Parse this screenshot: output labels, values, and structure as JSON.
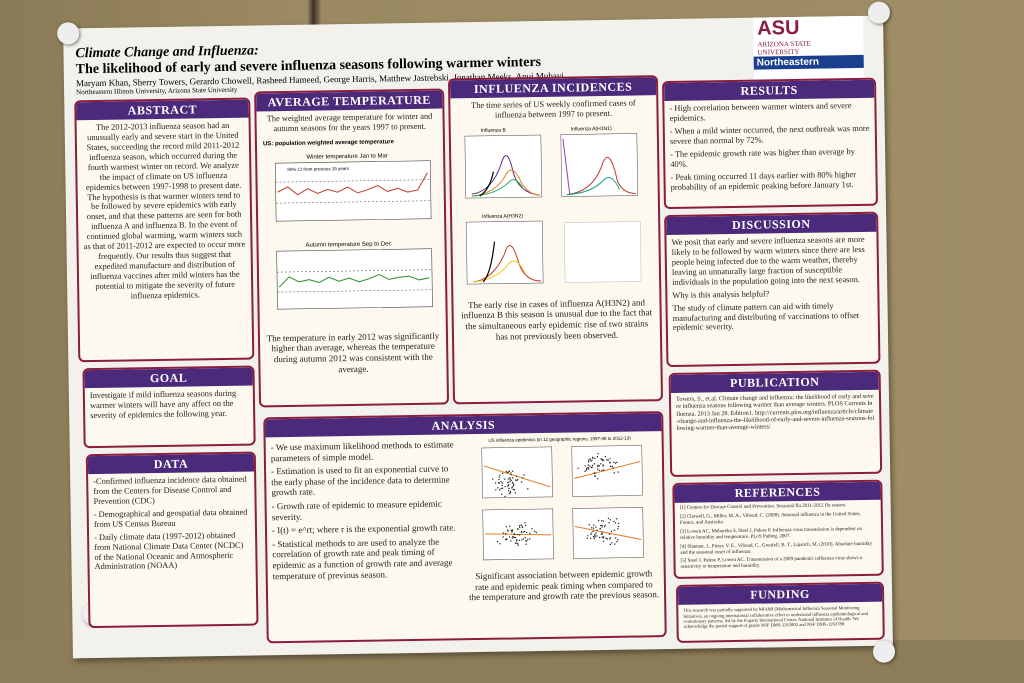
{
  "header": {
    "title": "Climate Change and Influenza:",
    "subtitle": "The likelihood of early and severe influenza seasons following warmer winters",
    "authors": "Maryam Khan, Sherry Towers, Gerardo Chowell, Rasheed Hameed, George Harris, Matthew Jastrebski, Jonathan Meeks, Anuj Mubayi",
    "affiliations": "Northeastern Illinois University, Arizona State University",
    "logo_asu": "ASU",
    "logo_asu_name": "ARIZONA STATE UNIVERSITY",
    "logo_neiu": "Northeastern"
  },
  "abstract": {
    "title": "ABSTRACT",
    "text": "The 2012-2013 influenza season had an unusually early and severe start in the United States, succeeding the record mild 2011-2012 influenza season, which occurred during the fourth warmest winter on record. We analyze the impact of climate on US influenza epidemics between 1997-1998 to present date. The hypothesis is that warmer winters tend to be followed by severe epidemics with early onset, and that these patterns are seen for both influenza A and influenza B. In the event of continued global warming, warm winters such as that of 2011-2012 are expected to occur more frequently. Our results thus suggest that expedited manufacture and distribution of influenza vaccines after mild winters has the potential to mitigate the severity of future influenza epidemics."
  },
  "goal": {
    "title": "GOAL",
    "text": "Investigate if mild influenza seasons during warmer winters will have any affect on the severity of epidemics the following year."
  },
  "data": {
    "title": "DATA",
    "items": [
      "-Confirmed influenza incidence data obtained from the Centers for Disease Control and Prevention (CDC)",
      "- Demographical and geospatial data obtained from US Census Bureau",
      "- Daily climate data (1997-2012) obtained from National Climate Data Center (NCDC) of the National Oceanic and Atmospheric Administration (NOAA)"
    ]
  },
  "temperature": {
    "title": "AVERAGE TEMPERATURE",
    "intro": "The weighted average temperature for winter and autumn seasons for the years 1997 to present.",
    "figure_title": "US: population weighted average temperature",
    "winter": "Winter temperature Jan to Mar",
    "autumn": "Autumn temperature Sep to Dec",
    "legend": "80% CI from previous 15 years",
    "caption": "The temperature in early 2012 was significantly higher than average, whereas the temperature during autumn 2012 was consistent with the average."
  },
  "incidence": {
    "title": "INFLUENZA INCIDENCES",
    "intro": "The time series of US weekly confirmed cases of influenza between 1997 to present.",
    "panels": [
      "Influenza B",
      "Influenza A(H1N1)",
      "Influenza A(H3N2)"
    ],
    "caption": "The early rise in cases of influenza A(H3N2) and influenza B this season is unusual due to the fact that the simultaneous early epidemic rise of two strains has not previously been observed."
  },
  "analysis": {
    "title": "ANALYSIS",
    "items": [
      "- We use maximum likelihood methods to estimate parameters of simple model.",
      "- Estimation is used to fit an exponential curve to the early phase of the incidence data to determine growth rate.",
      "- Growth rate of epidemic to measure epidemic severity.",
      "- I(t) = e^rt; where r is the exponential growth rate.",
      "- Statistical methods to are used to analyze the correlation of growth rate and peak timing of epidemic as a function of growth rate and average temperature of previous season."
    ],
    "figure_title": "US influenza epidemics (in 12 geographic regions; 1997-98 to 2012-13)",
    "caption": "Significant association between epidemic growth rate and epidemic peak timing when compared to the temperature and growth rate the previous season."
  },
  "results": {
    "title": "RESULTS",
    "items": [
      "- High correlation between warmer winters and severe epidemics.",
      "- When a mild winter occurred, the next outbreak was more severe than normal by 72%.",
      "- The epidemic growth rate was higher than average by 40%.",
      "- Peak timing occurred 11 days earlier with 80% higher probability of an epidemic peaking before January 1st."
    ]
  },
  "discussion": {
    "title": "DISCUSSION",
    "text": "We posit that early and severe influenza seasons are more likely to be followed by warm winters since there are less people being infected due to the warm weather, thereby leaving an unnaturally large fraction of susceptible individuals in the population going into the next season.",
    "question": "Why is this analysis helpful?",
    "answer": "The study of climate pattern can aid with timely manufacturing and distributing of vaccinations to offset epidemic severity."
  },
  "publication": {
    "title": "PUBLICATION",
    "text": "Towers, S., et.al. Climate change and influenza: the likelihood of early and severe influenza seasons following warmer than average winters. PLOS Currents Influenza. 2013 Jan 28. Edition1. http://currents.plos.org/influenza/article/climate-change-and-influenza-the-likelihood-of-early-and-severe-influenza-seasons-following-warmer-than-average-winters/"
  },
  "references": {
    "title": "REFERENCES",
    "items": [
      "[1] Centers for Disease Control and Prevention. Seasonal flu 2011-2012 flu season.",
      "[2] Chowell, G., Miller, M. A., Viboud, C. (2008). Seasonal influenza in the United States, France, and Australia.",
      "[3] Lowen AC, Mubareka S, Steel J, Palese P. Influenza virus transmission is dependent on relative humidity and temperature. PLoS Pathog. 2007.",
      "[4] Shaman, J., Pitzer, V. E., Viboud, C., Grenfell, B. T., Lipsitch, M. (2010). Absolute humidity and the seasonal onset of influenza.",
      "[5] Steel J, Palese P, Lowen AC. Transmission of a 2009 pandemic influenza virus shows a sensitivity to temperature and humidity."
    ]
  },
  "funding": {
    "title": "FUNDING",
    "text": "This research was partially supported by MIAMI (Mathematical Influenza Seasonal Monitoring Initiative), an ongoing international collaborative effort to understand influenza epidemiological and evolutionary patterns, led by the Fogarty International Center, National Institutes of Health. We acknowledge the partial support of grants NSF DMS-1263802 and NSF DMS-1263788."
  }
}
